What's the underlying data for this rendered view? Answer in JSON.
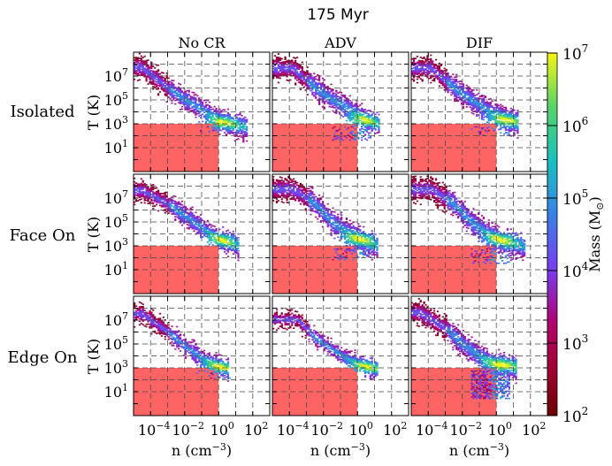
{
  "figure": {
    "title": "175 Myr",
    "col_titles": [
      "No CR",
      "ADV",
      "DIF"
    ],
    "row_titles": [
      "Isolated",
      "Face On",
      "Edge On"
    ],
    "ylabel": "T (K)",
    "xlabel_main": "n (cm",
    "xlabel_exp": "−3",
    "xlabel_close": ")",
    "y_ticks": [
      {
        "base": "10",
        "exp": "7"
      },
      {
        "base": "10",
        "exp": "5"
      },
      {
        "base": "10",
        "exp": "3"
      },
      {
        "base": "10",
        "exp": "1"
      }
    ],
    "x_ticks": [
      {
        "base": "10",
        "exp": "−4"
      },
      {
        "base": "10",
        "exp": "−2"
      },
      {
        "base": "10",
        "exp": "0"
      },
      {
        "base": "10",
        "exp": "2"
      }
    ],
    "colorbar": {
      "label_main": "Mass (M",
      "label_sym": "⊙",
      "label_close": ")",
      "ticks": [
        {
          "base": "10",
          "exp": "7"
        },
        {
          "base": "10",
          "exp": "6"
        },
        {
          "base": "10",
          "exp": "5"
        },
        {
          "base": "10",
          "exp": "4"
        },
        {
          "base": "10",
          "exp": "3"
        },
        {
          "base": "10",
          "exp": "2"
        }
      ]
    }
  },
  "chart_data": {
    "type": "heatmap",
    "title": "175 Myr",
    "xlabel": "n (cm^-3)",
    "ylabel": "T (K)",
    "xscale": "log",
    "yscale": "log",
    "xlim": [
      1e-05,
      1000.0
    ],
    "ylim": [
      0.1,
      1000000000.0
    ],
    "colorbar": {
      "label": "Mass (M_sun)",
      "scale": "log",
      "range": [
        100.0,
        10000000.0
      ]
    },
    "colormap": [
      "#6a0000",
      "#b3006a",
      "#7a3bf0",
      "#3a7fe8",
      "#19c0c0",
      "#54d46a",
      "#f5f513"
    ],
    "shaded_region": {
      "color": "#ff6464",
      "x_max": 1,
      "y_max": 1000
    },
    "grid": true,
    "columns": [
      "No CR",
      "ADV",
      "DIF"
    ],
    "rows": [
      "Isolated",
      "Face On",
      "Edge On"
    ],
    "panels": [
      {
        "row": "Isolated",
        "column": "No CR",
        "band": [
          [
            -4.5,
            7.7
          ],
          [
            -3,
            6
          ],
          [
            -2,
            5
          ],
          [
            -1,
            4.2
          ],
          [
            0,
            3.3
          ],
          [
            1,
            2.8
          ],
          [
            1.7,
            2.6
          ]
        ],
        "peak": [
          0,
          3
        ],
        "spread": 0.55,
        "cold_tail": 0.3
      },
      {
        "row": "Isolated",
        "column": "ADV",
        "band": [
          [
            -3.8,
            7.6
          ],
          [
            -2.5,
            6
          ],
          [
            -1.5,
            5
          ],
          [
            -0.5,
            4.2
          ],
          [
            0.5,
            3.3
          ],
          [
            1.3,
            2.8
          ]
        ],
        "peak": [
          0.1,
          3.2
        ],
        "spread": 0.55,
        "cold_tail": 0.7
      },
      {
        "row": "Isolated",
        "column": "DIF",
        "band": [
          [
            -3.8,
            7.6
          ],
          [
            -2.5,
            6
          ],
          [
            -1.5,
            5
          ],
          [
            -0.5,
            4.1
          ],
          [
            0.5,
            3.4
          ],
          [
            1.3,
            3
          ]
        ],
        "peak": [
          0.3,
          3.2
        ],
        "spread": 0.55,
        "cold_tail": 0.5
      },
      {
        "row": "Face On",
        "column": "No CR",
        "band": [
          [
            -4.5,
            7.6
          ],
          [
            -3,
            6.5
          ],
          [
            -2,
            5.5
          ],
          [
            -1,
            4.5
          ],
          [
            0,
            3.6
          ],
          [
            1.2,
            2.8
          ]
        ],
        "peak": [
          0,
          3.4
        ],
        "spread": 0.45,
        "cold_tail": 0
      },
      {
        "row": "Face On",
        "column": "ADV",
        "band": [
          [
            -3.8,
            7.7
          ],
          [
            -2.5,
            6.5
          ],
          [
            -1.5,
            5
          ],
          [
            -0.5,
            4
          ],
          [
            0.5,
            3.3
          ],
          [
            1.2,
            2.8
          ]
        ],
        "peak": [
          0,
          3.5
        ],
        "spread": 0.6,
        "cold_tail": 0.6
      },
      {
        "row": "Face On",
        "column": "DIF",
        "band": [
          [
            -3.8,
            7.7
          ],
          [
            -2.5,
            6.5
          ],
          [
            -1.5,
            5
          ],
          [
            -0.5,
            4
          ],
          [
            0.5,
            3.2
          ],
          [
            1.7,
            2.8
          ]
        ],
        "peak": [
          0.2,
          3.5
        ],
        "spread": 0.6,
        "cold_tail": 0.8
      },
      {
        "row": "Edge On",
        "column": "No CR",
        "band": [
          [
            -4.5,
            7.5
          ],
          [
            -3,
            6
          ],
          [
            -2,
            4.8
          ],
          [
            -1,
            3.8
          ],
          [
            0,
            3.1
          ],
          [
            0.6,
            2.8
          ]
        ],
        "peak": [
          0,
          3
        ],
        "spread": 0.4,
        "cold_tail": 0.4
      },
      {
        "row": "Edge On",
        "column": "ADV",
        "band": [
          [
            -3.5,
            7
          ],
          [
            -2.5,
            5.5
          ],
          [
            -1.5,
            4.5
          ],
          [
            -0.5,
            3.7
          ],
          [
            0.5,
            3.1
          ],
          [
            1.2,
            2.8
          ]
        ],
        "peak": [
          0.3,
          3
        ],
        "spread": 0.3,
        "cold_tail": 0
      },
      {
        "row": "Edge On",
        "column": "DIF",
        "band": [
          [
            -4.5,
            7.6
          ],
          [
            -3,
            6.3
          ],
          [
            -2,
            5
          ],
          [
            -1,
            4
          ],
          [
            0,
            3.3
          ],
          [
            1.2,
            2.9
          ]
        ],
        "peak": [
          0.2,
          3.2
        ],
        "spread": 0.55,
        "cold_tail": 1.5
      }
    ]
  }
}
